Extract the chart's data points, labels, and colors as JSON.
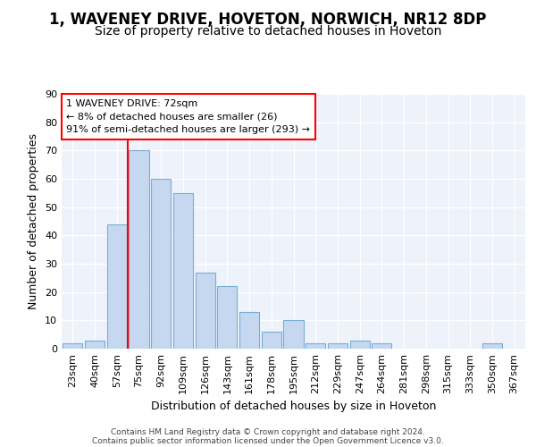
{
  "title": "1, WAVENEY DRIVE, HOVETON, NORWICH, NR12 8DP",
  "subtitle": "Size of property relative to detached houses in Hoveton",
  "xlabel": "Distribution of detached houses by size in Hoveton",
  "ylabel": "Number of detached properties",
  "bar_labels": [
    "23sqm",
    "40sqm",
    "57sqm",
    "75sqm",
    "92sqm",
    "109sqm",
    "126sqm",
    "143sqm",
    "161sqm",
    "178sqm",
    "195sqm",
    "212sqm",
    "229sqm",
    "247sqm",
    "264sqm",
    "281sqm",
    "298sqm",
    "315sqm",
    "333sqm",
    "350sqm",
    "367sqm"
  ],
  "bar_values": [
    2,
    3,
    44,
    70,
    60,
    55,
    27,
    22,
    13,
    6,
    10,
    2,
    2,
    3,
    2,
    0,
    0,
    0,
    0,
    2,
    0
  ],
  "bar_color": "#c5d8f0",
  "bar_edge_color": "#7aadd4",
  "background_color": "#edf2fb",
  "grid_color": "#ffffff",
  "property_line_color": "red",
  "annotation_text": "1 WAVENEY DRIVE: 72sqm\n← 8% of detached houses are smaller (26)\n91% of semi-detached houses are larger (293) →",
  "ylim": [
    0,
    90
  ],
  "yticks": [
    0,
    10,
    20,
    30,
    40,
    50,
    60,
    70,
    80,
    90
  ],
  "footer_line1": "Contains HM Land Registry data © Crown copyright and database right 2024.",
  "footer_line2": "Contains public sector information licensed under the Open Government Licence v3.0.",
  "title_fontsize": 12,
  "subtitle_fontsize": 10,
  "xlabel_fontsize": 9,
  "ylabel_fontsize": 9,
  "annotation_fontsize": 8,
  "tick_fontsize": 8
}
